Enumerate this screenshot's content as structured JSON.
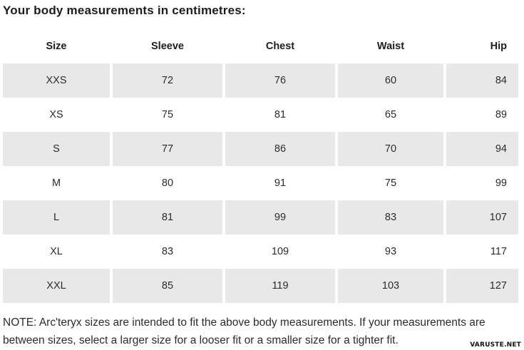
{
  "title": "Your body measurements in centimetres:",
  "table": {
    "columns": [
      "Size",
      "Sleeve",
      "Chest",
      "Waist",
      "Hip"
    ],
    "rows": [
      {
        "size": "XXS",
        "sleeve": "72",
        "chest": "76",
        "waist": "60",
        "hip": "84"
      },
      {
        "size": "XS",
        "sleeve": "75",
        "chest": "81",
        "waist": "65",
        "hip": "89"
      },
      {
        "size": "S",
        "sleeve": "77",
        "chest": "86",
        "waist": "70",
        "hip": "94"
      },
      {
        "size": "M",
        "sleeve": "80",
        "chest": "91",
        "waist": "75",
        "hip": "99"
      },
      {
        "size": "L",
        "sleeve": "81",
        "chest": "99",
        "waist": "83",
        "hip": "107"
      },
      {
        "size": "XL",
        "sleeve": "83",
        "chest": "109",
        "waist": "93",
        "hip": "117"
      },
      {
        "size": "XXL",
        "sleeve": "85",
        "chest": "119",
        "waist": "103",
        "hip": "127"
      }
    ]
  },
  "note": "NOTE: Arc'teryx sizes are intended to fit the above body measurements. If your measurements are between sizes, select a larger size for a looser fit or a smaller size for a tighter fit.",
  "watermark": "VARUSTE.NET",
  "colors": {
    "row_shade": "#e8e8e8",
    "body_text": "#2b2b2b",
    "heading_text": "#1d1d1d"
  }
}
